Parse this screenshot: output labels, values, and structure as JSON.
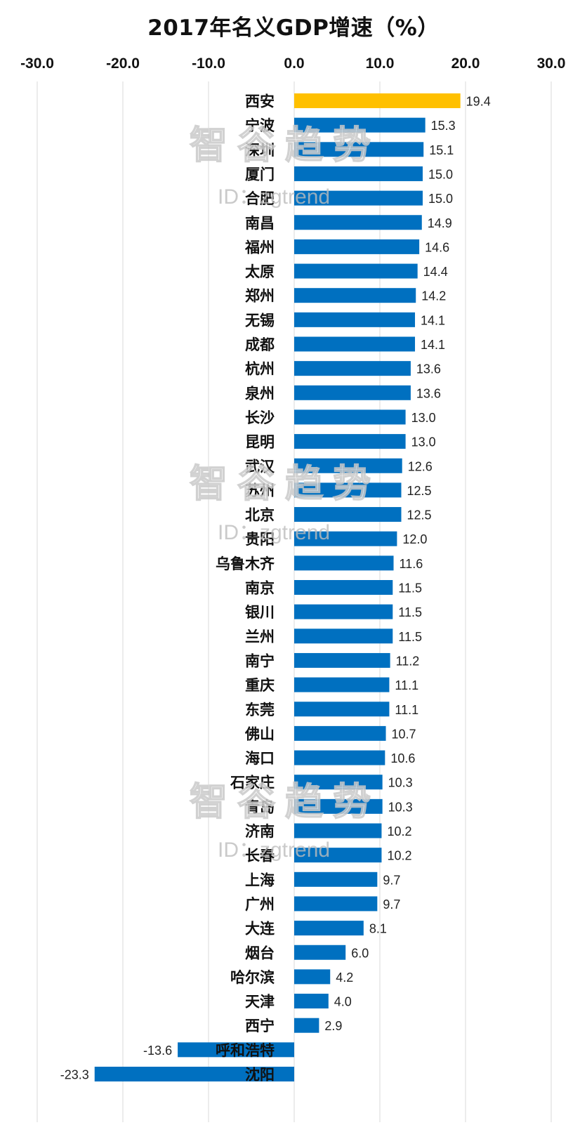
{
  "chart_data": {
    "type": "bar",
    "orientation": "horizontal",
    "title": "2017年名义GDP增速（%）",
    "xlim": [
      -30,
      30
    ],
    "x_ticks": [
      "-30.0",
      "-20.0",
      "-10.0",
      "0.0",
      "10.0",
      "20.0",
      "30.0"
    ],
    "x_tick_values": [
      -30,
      -20,
      -10,
      0,
      10,
      20,
      30
    ],
    "grid": true,
    "highlight_color": "#FFC000",
    "bar_color": "#0070C0",
    "categories": [
      "西安",
      "宁波",
      "深圳",
      "厦门",
      "合肥",
      "南昌",
      "福州",
      "太原",
      "郑州",
      "无锡",
      "成都",
      "杭州",
      "泉州",
      "长沙",
      "昆明",
      "武汉",
      "苏州",
      "北京",
      "贵阳",
      "乌鲁木齐",
      "南京",
      "银川",
      "兰州",
      "南宁",
      "重庆",
      "东莞",
      "佛山",
      "海口",
      "石家庄",
      "青岛",
      "济南",
      "长春",
      "上海",
      "广州",
      "大连",
      "烟台",
      "哈尔滨",
      "天津",
      "西宁",
      "呼和浩特",
      "沈阳"
    ],
    "values": [
      19.4,
      15.3,
      15.1,
      15.0,
      15.0,
      14.9,
      14.6,
      14.4,
      14.2,
      14.1,
      14.1,
      13.6,
      13.6,
      13.0,
      13.0,
      12.6,
      12.5,
      12.5,
      12.0,
      11.6,
      11.5,
      11.5,
      11.5,
      11.2,
      11.1,
      11.1,
      10.7,
      10.6,
      10.3,
      10.3,
      10.2,
      10.2,
      9.7,
      9.7,
      8.1,
      6.0,
      4.2,
      4.0,
      2.9,
      -13.6,
      -23.3
    ],
    "value_labels": [
      "19.4",
      "15.3",
      "15.1",
      "15.0",
      "15.0",
      "14.9",
      "14.6",
      "14.4",
      "14.2",
      "14.1",
      "14.1",
      "13.6",
      "13.6",
      "13.0",
      "13.0",
      "12.6",
      "12.5",
      "12.5",
      "12.0",
      "11.6",
      "11.5",
      "11.5",
      "11.5",
      "11.2",
      "11.1",
      "11.1",
      "10.7",
      "10.6",
      "10.3",
      "10.3",
      "10.2",
      "10.2",
      "9.7",
      "9.7",
      "8.1",
      "6.0",
      "4.2",
      "4.0",
      "2.9",
      "-13.6",
      "-23.3"
    ],
    "highlight_index": 0
  },
  "watermark": {
    "text": "智谷趋势",
    "id_text": "ID：zgtrend"
  }
}
